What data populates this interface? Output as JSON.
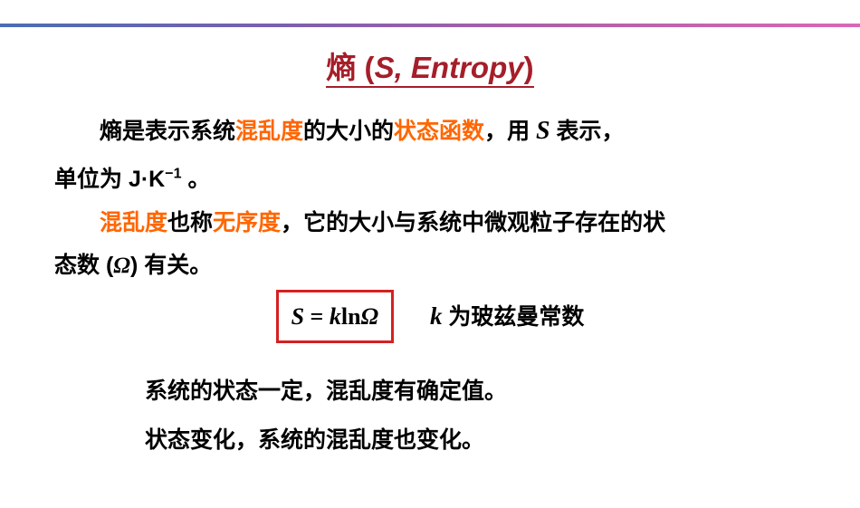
{
  "title": {
    "char": "熵",
    "open_paren": " (",
    "s": "S",
    "comma_word": ", Entropy",
    "close_paren": ")"
  },
  "para1": {
    "t1": "熵是表示系统",
    "h1": "混乱度",
    "t2": "的大小的",
    "h2": "状态函数",
    "t3": "，用 ",
    "s": "S",
    "t4": " 表示，"
  },
  "para1b": {
    "t1": "单位为 ",
    "unit1": "J·K",
    "super": "−1",
    "t2": " 。"
  },
  "para2": {
    "indent": "　　",
    "h1": "混乱度",
    "t1": "也称",
    "h2": "无序度",
    "t2": "，它的大小与系统中微观粒子存在的状"
  },
  "para2b": {
    "t1": " 态数 (",
    "omega": "Ω",
    "t2": ") 有关。"
  },
  "formula": {
    "s": "S",
    "eq": " = ",
    "k": "k",
    "ln": "ln",
    "omega": "Ω"
  },
  "formula_label": {
    "k": "k",
    "t": " 为玻兹曼常数"
  },
  "para3": "系统的状态一定，混乱度有确定值。",
  "para4": "状态变化，系统的混乱度也变化。",
  "colors": {
    "title_color": "#a51e2a",
    "highlight": "#ff6600",
    "box_border": "#d62020",
    "text": "#000000"
  }
}
